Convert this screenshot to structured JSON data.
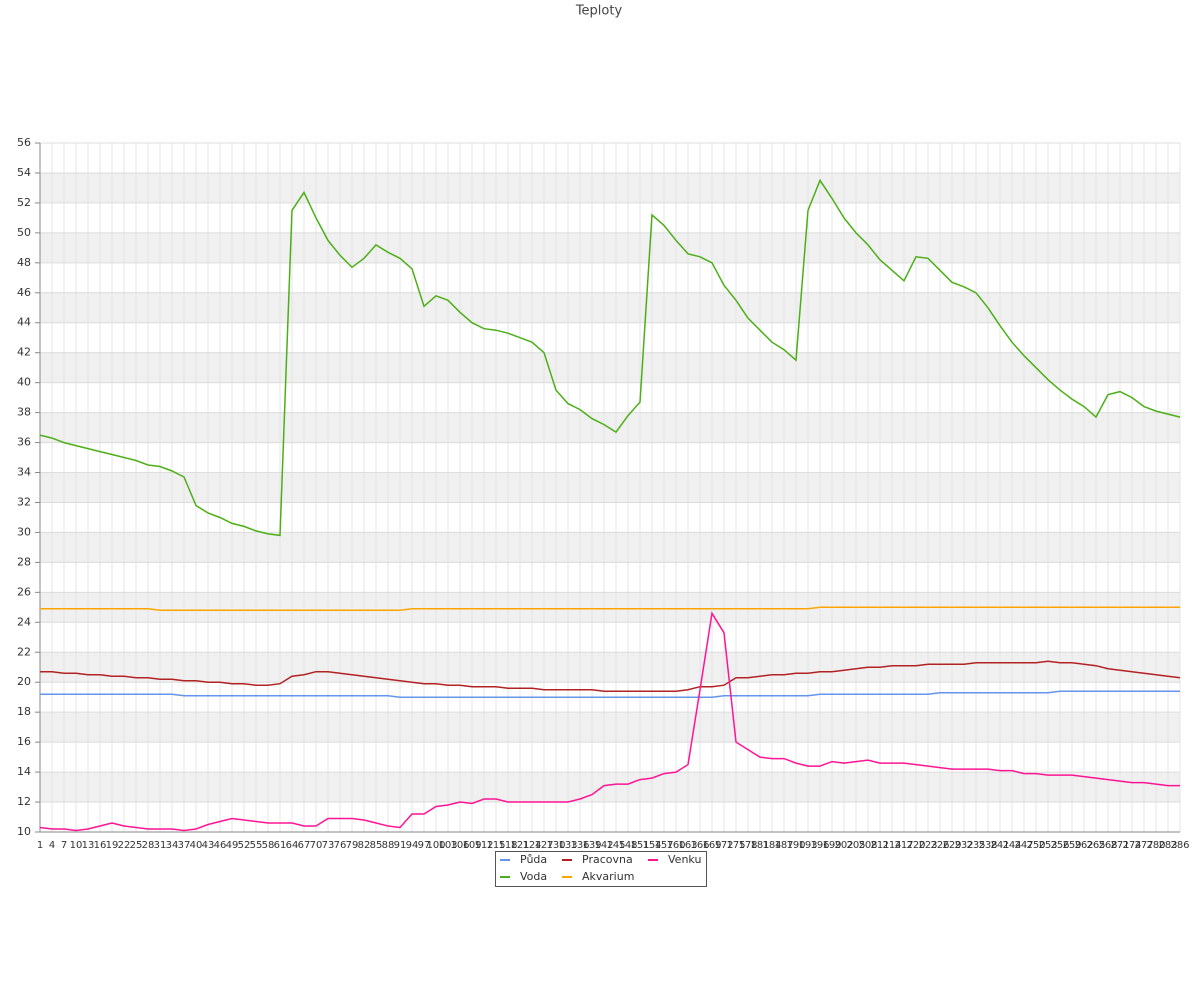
{
  "chart_data": {
    "type": "line",
    "title": "Teploty",
    "categories": [
      1,
      4,
      7,
      10,
      13,
      16,
      19,
      22,
      25,
      28,
      31,
      34,
      37,
      40,
      43,
      46,
      49,
      52,
      55,
      58,
      61,
      64,
      67,
      70,
      73,
      76,
      79,
      82,
      85,
      88,
      91,
      94,
      97,
      100,
      103,
      106,
      109,
      112,
      115,
      118,
      121,
      124,
      127,
      130,
      133,
      136,
      139,
      142,
      145,
      148,
      151,
      154,
      157,
      160,
      163,
      166,
      169,
      172,
      175,
      178,
      181,
      184,
      187,
      190,
      193,
      196,
      199,
      202,
      205,
      208,
      211,
      214,
      217,
      220,
      223,
      226,
      229,
      232,
      235,
      238,
      241,
      244,
      247,
      250,
      253,
      256,
      259,
      262,
      265,
      268,
      271,
      274,
      277,
      280,
      283,
      286
    ],
    "ylim": [
      10,
      56
    ],
    "yticks": [
      10,
      12,
      14,
      16,
      18,
      20,
      22,
      24,
      26,
      28,
      30,
      32,
      34,
      36,
      38,
      40,
      42,
      44,
      46,
      48,
      50,
      52,
      54,
      56
    ],
    "grid": true,
    "series": [
      {
        "name": "Půda",
        "color": "#6495ed",
        "values": [
          19.2,
          19.2,
          19.2,
          19.2,
          19.2,
          19.2,
          19.2,
          19.2,
          19.2,
          19.2,
          19.2,
          19.2,
          19.1,
          19.1,
          19.1,
          19.1,
          19.1,
          19.1,
          19.1,
          19.1,
          19.1,
          19.1,
          19.1,
          19.1,
          19.1,
          19.1,
          19.1,
          19.1,
          19.1,
          19.1,
          19.0,
          19.0,
          19.0,
          19.0,
          19.0,
          19.0,
          19.0,
          19.0,
          19.0,
          19.0,
          19.0,
          19.0,
          19.0,
          19.0,
          19.0,
          19.0,
          19.0,
          19.0,
          19.0,
          19.0,
          19.0,
          19.0,
          19.0,
          19.0,
          19.0,
          19.0,
          19.0,
          19.1,
          19.1,
          19.1,
          19.1,
          19.1,
          19.1,
          19.1,
          19.1,
          19.2,
          19.2,
          19.2,
          19.2,
          19.2,
          19.2,
          19.2,
          19.2,
          19.2,
          19.2,
          19.3,
          19.3,
          19.3,
          19.3,
          19.3,
          19.3,
          19.3,
          19.3,
          19.3,
          19.3,
          19.4,
          19.4,
          19.4,
          19.4,
          19.4,
          19.4,
          19.4,
          19.4,
          19.4,
          19.4,
          19.4
        ]
      },
      {
        "name": "Voda",
        "color": "#4caf17",
        "values": [
          36.5,
          36.3,
          36.0,
          35.8,
          35.6,
          35.4,
          35.2,
          35.0,
          34.8,
          34.5,
          34.4,
          34.1,
          33.7,
          31.8,
          31.3,
          31.0,
          30.6,
          30.4,
          30.1,
          29.9,
          29.8,
          51.5,
          52.7,
          51.0,
          49.5,
          48.5,
          47.7,
          48.3,
          49.2,
          48.7,
          48.3,
          47.6,
          45.1,
          45.8,
          45.5,
          44.7,
          44.0,
          43.6,
          43.5,
          43.3,
          43.0,
          42.7,
          42.0,
          39.5,
          38.6,
          38.2,
          37.6,
          37.2,
          36.7,
          37.8,
          38.7,
          51.2,
          50.5,
          49.5,
          48.6,
          48.4,
          48.0,
          46.5,
          45.5,
          44.3,
          43.5,
          42.7,
          42.2,
          41.5,
          51.5,
          53.5,
          52.3,
          51.0,
          50.0,
          49.2,
          48.2,
          47.5,
          46.8,
          48.4,
          48.3,
          47.5,
          46.7,
          46.4,
          46.0,
          45.0,
          43.8,
          42.7,
          41.8,
          41.0,
          40.2,
          39.5,
          38.9,
          38.4,
          37.7,
          39.2,
          39.4,
          39.0,
          38.4,
          38.1,
          37.9,
          37.7
        ]
      },
      {
        "name": "Pracovna",
        "color": "#b22222",
        "values": [
          20.7,
          20.7,
          20.6,
          20.6,
          20.5,
          20.5,
          20.4,
          20.4,
          20.3,
          20.3,
          20.2,
          20.2,
          20.1,
          20.1,
          20.0,
          20.0,
          19.9,
          19.9,
          19.8,
          19.8,
          19.9,
          20.4,
          20.5,
          20.7,
          20.7,
          20.6,
          20.5,
          20.4,
          20.3,
          20.2,
          20.1,
          20.0,
          19.9,
          19.9,
          19.8,
          19.8,
          19.7,
          19.7,
          19.7,
          19.6,
          19.6,
          19.6,
          19.5,
          19.5,
          19.5,
          19.5,
          19.5,
          19.4,
          19.4,
          19.4,
          19.4,
          19.4,
          19.4,
          19.4,
          19.5,
          19.7,
          19.7,
          19.8,
          20.3,
          20.3,
          20.4,
          20.5,
          20.5,
          20.6,
          20.6,
          20.7,
          20.7,
          20.8,
          20.9,
          21.0,
          21.0,
          21.1,
          21.1,
          21.1,
          21.2,
          21.2,
          21.2,
          21.2,
          21.3,
          21.3,
          21.3,
          21.3,
          21.3,
          21.3,
          21.4,
          21.3,
          21.3,
          21.2,
          21.1,
          20.9,
          20.8,
          20.7,
          20.6,
          20.5,
          20.4,
          20.3
        ]
      },
      {
        "name": "Akvarium",
        "color": "#ffa500",
        "values": [
          24.9,
          24.9,
          24.9,
          24.9,
          24.9,
          24.9,
          24.9,
          24.9,
          24.9,
          24.9,
          24.8,
          24.8,
          24.8,
          24.8,
          24.8,
          24.8,
          24.8,
          24.8,
          24.8,
          24.8,
          24.8,
          24.8,
          24.8,
          24.8,
          24.8,
          24.8,
          24.8,
          24.8,
          24.8,
          24.8,
          24.8,
          24.9,
          24.9,
          24.9,
          24.9,
          24.9,
          24.9,
          24.9,
          24.9,
          24.9,
          24.9,
          24.9,
          24.9,
          24.9,
          24.9,
          24.9,
          24.9,
          24.9,
          24.9,
          24.9,
          24.9,
          24.9,
          24.9,
          24.9,
          24.9,
          24.9,
          24.9,
          24.9,
          24.9,
          24.9,
          24.9,
          24.9,
          24.9,
          24.9,
          24.9,
          25.0,
          25.0,
          25.0,
          25.0,
          25.0,
          25.0,
          25.0,
          25.0,
          25.0,
          25.0,
          25.0,
          25.0,
          25.0,
          25.0,
          25.0,
          25.0,
          25.0,
          25.0,
          25.0,
          25.0,
          25.0,
          25.0,
          25.0,
          25.0,
          25.0,
          25.0,
          25.0,
          25.0,
          25.0,
          25.0,
          25.0
        ]
      },
      {
        "name": "Venku",
        "color": "#ff1493",
        "values": [
          10.3,
          10.2,
          10.2,
          10.1,
          10.2,
          10.4,
          10.6,
          10.4,
          10.3,
          10.2,
          10.2,
          10.2,
          10.1,
          10.2,
          10.5,
          10.7,
          10.9,
          10.8,
          10.7,
          10.6,
          10.6,
          10.6,
          10.4,
          10.4,
          10.9,
          10.9,
          10.9,
          10.8,
          10.6,
          10.4,
          10.3,
          11.2,
          11.2,
          11.7,
          11.8,
          12.0,
          11.9,
          12.2,
          12.2,
          12.0,
          12.0,
          12.0,
          12.0,
          12.0,
          12.0,
          12.2,
          12.5,
          13.1,
          13.2,
          13.2,
          13.5,
          13.6,
          13.9,
          14.0,
          14.5,
          19.5,
          24.6,
          23.3,
          16.0,
          15.5,
          15.0,
          14.9,
          14.9,
          14.6,
          14.4,
          14.4,
          14.7,
          14.6,
          14.7,
          14.8,
          14.6,
          14.6,
          14.6,
          14.5,
          14.4,
          14.3,
          14.2,
          14.2,
          14.2,
          14.2,
          14.1,
          14.1,
          13.9,
          13.9,
          13.8,
          13.8,
          13.8,
          13.7,
          13.6,
          13.5,
          13.4,
          13.3,
          13.3,
          13.2,
          13.1,
          13.1
        ]
      }
    ]
  }
}
